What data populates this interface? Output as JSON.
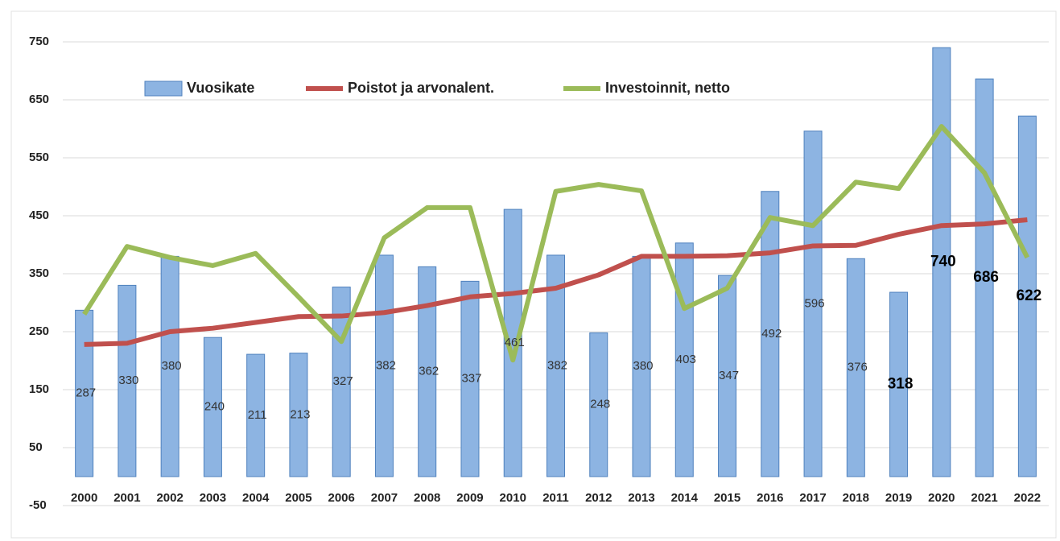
{
  "chart_data": {
    "type": "bar-line",
    "categories": [
      "2000",
      "2001",
      "2002",
      "2003",
      "2004",
      "2005",
      "2006",
      "2007",
      "2008",
      "2009",
      "2010",
      "2011",
      "2012",
      "2013",
      "2014",
      "2015",
      "2016",
      "2017",
      "2018",
      "2019",
      "2020",
      "2021",
      "2022"
    ],
    "series": [
      {
        "name": "Vuosikate",
        "type": "bar",
        "color": "#8db4e2",
        "values": [
          287,
          330,
          380,
          240,
          211,
          213,
          327,
          382,
          362,
          337,
          461,
          382,
          248,
          380,
          403,
          347,
          492,
          596,
          376,
          318,
          740,
          686,
          622
        ]
      },
      {
        "name": "Poistot ja arvonalent.",
        "type": "line",
        "color": "#c0504d",
        "values": [
          228,
          230,
          250,
          256,
          266,
          276,
          277,
          283,
          295,
          310,
          316,
          325,
          348,
          380,
          380,
          381,
          386,
          398,
          399,
          418,
          433,
          436,
          443
        ]
      },
      {
        "name": "Investoinnit, netto",
        "type": "line",
        "color": "#9bbb59",
        "values": [
          280,
          397,
          378,
          364,
          385,
          310,
          233,
          412,
          464,
          464,
          201,
          492,
          504,
          493,
          290,
          325,
          447,
          433,
          508,
          497,
          604,
          524,
          378
        ]
      }
    ],
    "ylim": [
      -50,
      750
    ],
    "yticks": [
      -50,
      50,
      150,
      250,
      350,
      450,
      550,
      650,
      750
    ],
    "grid": true,
    "legend": "top"
  }
}
